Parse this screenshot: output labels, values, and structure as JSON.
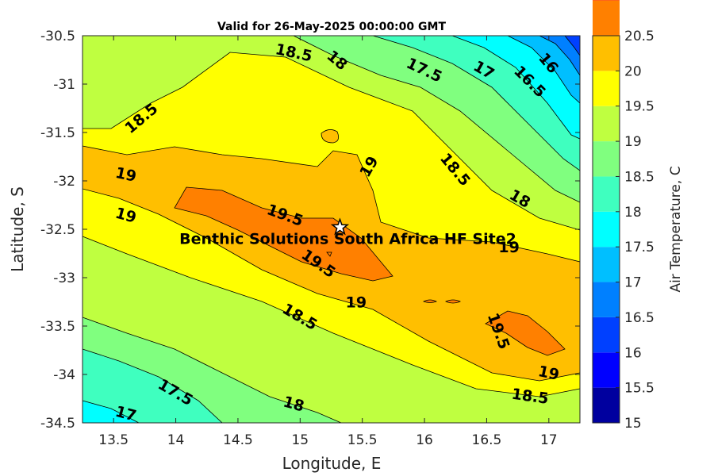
{
  "chart_data": {
    "type": "contour",
    "title": "Valid for 26-May-2025 00:00:00 GMT",
    "xlabel": "Longitude, E",
    "ylabel": "Latitude, S",
    "xlim": [
      13.25,
      17.25
    ],
    "ylim": [
      -34.5,
      -30.5
    ],
    "xticks": [
      "13.5",
      "14",
      "14.5",
      "15",
      "15.5",
      "16",
      "16.5",
      "17"
    ],
    "yticks": [
      "-30.5",
      "-31",
      "-31.5",
      "-32",
      "-32.5",
      "-33",
      "-33.5",
      "-34",
      "-34.5"
    ],
    "colorbar": {
      "label": "Air Temperature, C",
      "range": [
        15,
        20.5
      ],
      "step": 0.5,
      "ticks": [
        "15",
        "15.5",
        "16",
        "16.5",
        "17",
        "17.5",
        "18",
        "18.5",
        "19",
        "19.5",
        "20",
        "20.5"
      ],
      "colors": [
        "#00009f",
        "#0000ff",
        "#0040ff",
        "#0080ff",
        "#00bfff",
        "#00ffff",
        "#3fffbf",
        "#80ff7f",
        "#bfff40",
        "#ffff00",
        "#ffbf00",
        "#ff8000",
        "#ff4000",
        "#ff0000",
        "#bf0000"
      ]
    },
    "site": {
      "name": "Benthic Solutions South Africa HF Site2",
      "lon": 15.32,
      "lat": -32.48
    },
    "contour_labels": [
      {
        "text": "18.5",
        "lon": 14.95,
        "lat": -30.67,
        "angle": 12
      },
      {
        "text": "18",
        "lon": 15.3,
        "lat": -30.75,
        "angle": 40
      },
      {
        "text": "17.5",
        "lon": 16.0,
        "lat": -30.85,
        "angle": 25
      },
      {
        "text": "17",
        "lon": 16.48,
        "lat": -30.85,
        "angle": 30
      },
      {
        "text": "16.5",
        "lon": 16.85,
        "lat": -30.97,
        "angle": 45
      },
      {
        "text": "16",
        "lon": 17.0,
        "lat": -30.78,
        "angle": 50
      },
      {
        "text": "18.5",
        "lon": 13.72,
        "lat": -31.35,
        "angle": -40
      },
      {
        "text": "19",
        "lon": 13.6,
        "lat": -31.93,
        "angle": 12
      },
      {
        "text": "19",
        "lon": 13.6,
        "lat": -32.35,
        "angle": 15
      },
      {
        "text": "19",
        "lon": 15.55,
        "lat": -31.85,
        "angle": -60
      },
      {
        "text": "18.5",
        "lon": 16.25,
        "lat": -31.88,
        "angle": 50
      },
      {
        "text": "18",
        "lon": 16.77,
        "lat": -32.18,
        "angle": 30
      },
      {
        "text": "19.5",
        "lon": 14.88,
        "lat": -32.35,
        "angle": 20
      },
      {
        "text": "19.5",
        "lon": 15.15,
        "lat": -32.85,
        "angle": 35
      },
      {
        "text": "19",
        "lon": 16.68,
        "lat": -32.68,
        "angle": 0
      },
      {
        "text": "19",
        "lon": 15.45,
        "lat": -33.25,
        "angle": 0
      },
      {
        "text": "18.5",
        "lon": 15.0,
        "lat": -33.4,
        "angle": 30
      },
      {
        "text": "19.5",
        "lon": 16.6,
        "lat": -33.55,
        "angle": 70
      },
      {
        "text": "19",
        "lon": 17.0,
        "lat": -33.98,
        "angle": 12
      },
      {
        "text": "17.5",
        "lon": 14.0,
        "lat": -34.18,
        "angle": 30
      },
      {
        "text": "18",
        "lon": 14.95,
        "lat": -34.3,
        "angle": 15
      },
      {
        "text": "18.5",
        "lon": 16.85,
        "lat": -34.22,
        "angle": 8
      },
      {
        "text": "17",
        "lon": 13.6,
        "lat": -34.4,
        "angle": 15
      }
    ]
  }
}
